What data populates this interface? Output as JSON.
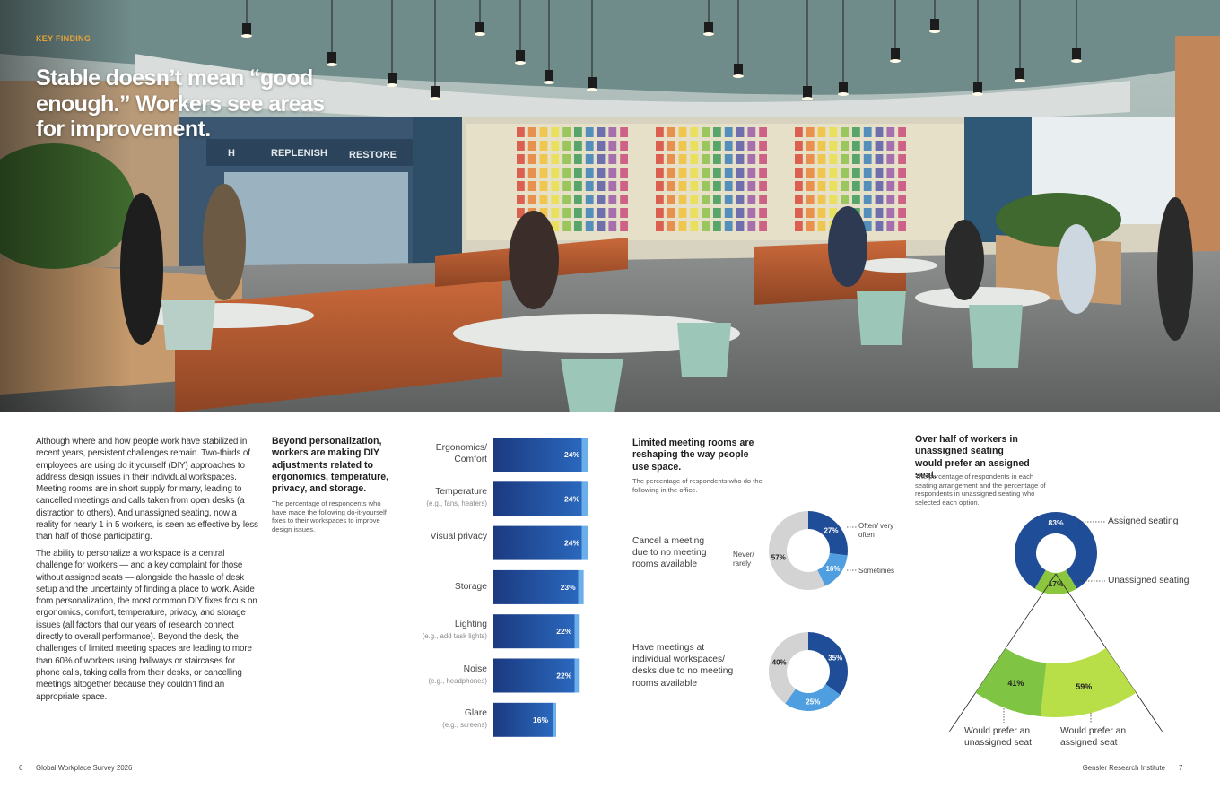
{
  "header": {
    "kicker": "KEY FINDING",
    "title": "Stable doesn’t mean “good enough.” Workers see areas for improvement."
  },
  "photo": {
    "signs": [
      "H",
      "REPLENISH",
      "RESTORE"
    ]
  },
  "body": {
    "paragraphs": [
      "Although where and how people work have stabilized in recent years, persistent challenges remain. Two-thirds of employees are using do it yourself (DIY) approaches to address design issues in their individual workspaces. Meeting rooms are in short supply for many, leading to cancelled meetings and calls taken from open desks (a distraction to others). And unassigned seating, now a reality for nearly 1 in 5 workers, is seen as effective by less than half of those participating.",
      "The ability to personalize a workspace is a central challenge for workers — and a key complaint for those without assigned seats — alongside the hassle of desk setup and the uncertainty of finding a place to work. Aside from personalization, the most common DIY fixes focus on ergonomics, comfort, temperature, privacy, and storage issues (all factors that our years of research connect directly to overall performance). Beyond the desk, the challenges of limited meeting spaces are leading to more than 60% of workers using hallways or staircases for phone calls, taking calls from their desks, or cancelling meetings altogether because they couldn’t find an appropriate space."
    ]
  },
  "chart_data": [
    {
      "type": "bar",
      "orientation": "horizontal",
      "title": "Beyond personalization, workers are making DIY adjustments related to ergonomics, temperature, privacy, and storage.",
      "subtitle": "The percentage of respondents who have made the following do-it-yourself fixes to their workspaces to improve design issues.",
      "categories": [
        "Ergonomics/ Comfort",
        "Temperature",
        "Visual privacy",
        "Storage",
        "Lighting",
        "Noise",
        "Glare"
      ],
      "category_notes": [
        null,
        "(e.g., fans, heaters)",
        null,
        null,
        "(e.g., add task lights)",
        "(e.g., headphones)",
        "(e.g., screens)"
      ],
      "values": [
        24,
        24,
        24,
        23,
        22,
        22,
        16
      ],
      "value_labels": [
        "24%",
        "24%",
        "24%",
        "23%",
        "22%",
        "22%",
        "16%"
      ],
      "color": "#2a68bd"
    },
    {
      "type": "donut",
      "title": "Limited meeting rooms are reshaping the way people use space.",
      "subtitle": "The percentage of respondents who do the following in the office.",
      "series": [
        {
          "name": "Often/ very often",
          "color": "#1f4d97",
          "label_color": "#ffffff"
        },
        {
          "name": "Sometimes",
          "color": "#4f9fe0",
          "label_color": "#ffffff"
        },
        {
          "name": "Never/ rarely",
          "color": "#d3d3d3",
          "label_color": "#222222"
        }
      ],
      "groups": [
        {
          "label": "Cancel a meeting due to no meeting rooms available",
          "values": [
            27,
            16,
            57
          ],
          "value_labels": [
            "27%",
            "16%",
            "57%"
          ]
        },
        {
          "label": "Have meetings at individual workspaces/ desks due to no meeting rooms available",
          "values": [
            35,
            25,
            40
          ],
          "value_labels": [
            "35%",
            "25%",
            "40%"
          ]
        }
      ]
    },
    {
      "type": "donut",
      "title": "Over half of workers in unassigned seating would prefer an assigned seat.",
      "subtitle": "The percentage of respondents in each seating arrangement and the percentage of respondents in unassigned seating who selected each option.",
      "categories": [
        "Assigned seating",
        "Unassigned seating"
      ],
      "values": [
        83,
        17
      ],
      "value_labels": [
        "83%",
        "17%"
      ],
      "colors": [
        "#1f4d97",
        "#8cc63f"
      ],
      "label_colors": [
        "#ffffff",
        "#222222"
      ],
      "breakdown": {
        "categories": [
          "Would prefer an unassigned seat",
          "Would prefer an assigned seat"
        ],
        "values": [
          41,
          59
        ],
        "value_labels": [
          "41%",
          "59%"
        ],
        "colors": [
          "#7fc543",
          "#b8de48"
        ],
        "label_colors": [
          "#222222",
          "#222222"
        ]
      }
    }
  ],
  "footer": {
    "left_page": "6",
    "left_text": "Global Workplace Survey 2026",
    "right_text": "Gensler Research Institute",
    "right_page": "7"
  }
}
